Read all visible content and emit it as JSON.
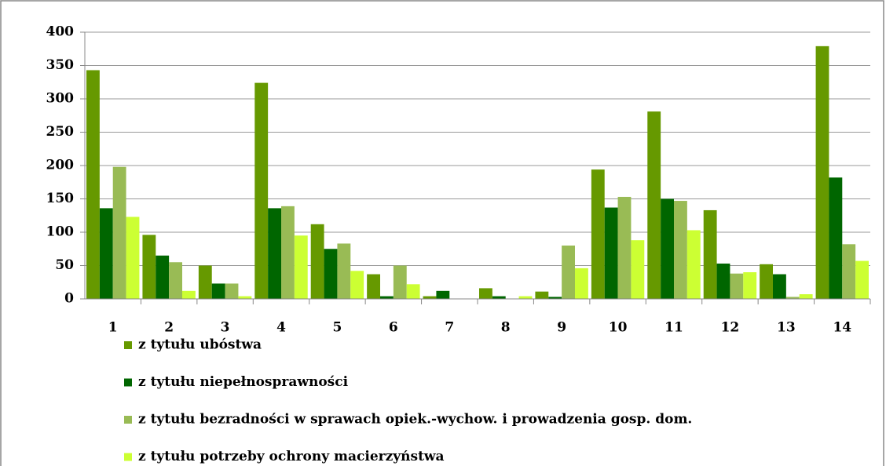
{
  "chart_data": {
    "type": "bar",
    "categories": [
      "1",
      "2",
      "3",
      "4",
      "5",
      "6",
      "7",
      "8",
      "9",
      "10",
      "11",
      "12",
      "13",
      "14"
    ],
    "series": [
      {
        "name": "z tytułu ubóstwa",
        "color": "#669900",
        "values": [
          343,
          96,
          50,
          324,
          112,
          37,
          4,
          16,
          11,
          194,
          281,
          133,
          52,
          379
        ]
      },
      {
        "name": "z tytułu niepełnosprawności",
        "color": "#006600",
        "values": [
          136,
          65,
          23,
          136,
          75,
          4,
          12,
          4,
          3,
          137,
          150,
          53,
          37,
          182
        ]
      },
      {
        "name": "z tytułu bezradności w sprawach opiek.-wychow. i prowadzenia gosp. dom.",
        "color": "#99bb55",
        "values": [
          198,
          55,
          23,
          139,
          83,
          50,
          0,
          0,
          80,
          153,
          147,
          38,
          3,
          82
        ]
      },
      {
        "name": "z tytułu potrzeby ochrony macierzyństwa",
        "color": "#ccff33",
        "values": [
          123,
          12,
          4,
          95,
          42,
          22,
          0,
          4,
          46,
          88,
          103,
          40,
          7,
          57
        ]
      }
    ],
    "ylim": [
      0,
      400
    ],
    "yticks": [
      0,
      50,
      100,
      150,
      200,
      250,
      300,
      350,
      400
    ],
    "grid": true,
    "legend": "bottom"
  }
}
